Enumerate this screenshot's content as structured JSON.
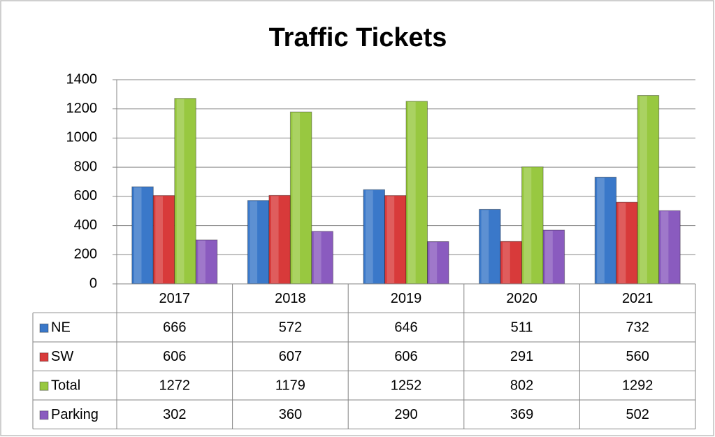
{
  "chart_data": {
    "type": "bar",
    "title": "Traffic Tickets",
    "categories": [
      "2017",
      "2018",
      "2019",
      "2020",
      "2021"
    ],
    "series": [
      {
        "name": "NE",
        "color": "#3a78c9",
        "values": [
          666,
          572,
          646,
          511,
          732
        ]
      },
      {
        "name": "SW",
        "color": "#d83a3a",
        "values": [
          606,
          607,
          606,
          291,
          560
        ]
      },
      {
        "name": "Total",
        "color": "#98c840",
        "values": [
          1272,
          1179,
          1252,
          802,
          1292
        ]
      },
      {
        "name": "Parking",
        "color": "#8a5bbf",
        "values": [
          302,
          360,
          290,
          369,
          502
        ]
      }
    ],
    "ylim": [
      0,
      1400
    ],
    "yticks": [
      0,
      200,
      400,
      600,
      800,
      1000,
      1200,
      1400
    ],
    "grid": true
  }
}
